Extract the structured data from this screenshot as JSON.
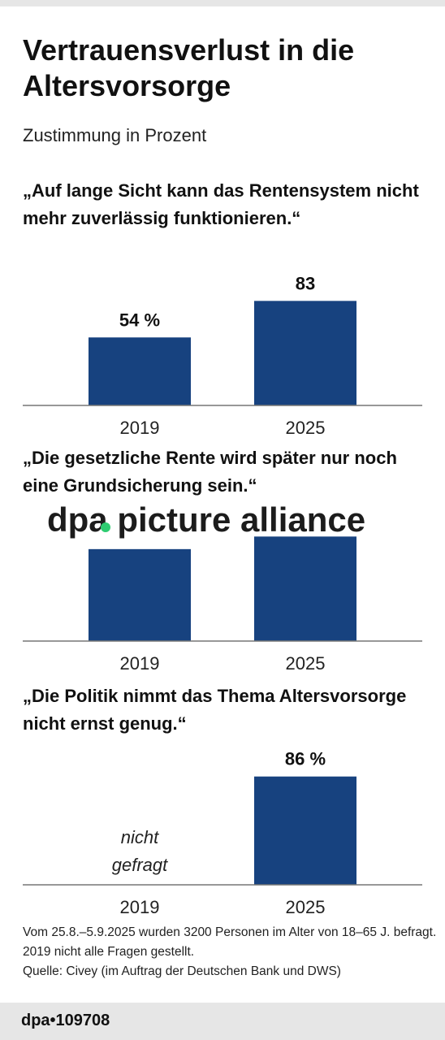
{
  "header": {
    "title": "Vertrauensverlust in die Altersvorsorge",
    "subtitle": "Zustimmung in Prozent"
  },
  "chart_data": [
    {
      "type": "bar",
      "title": "„Auf lange Sicht kann das Rentensystem nicht mehr zuverlässig funktionieren.“",
      "categories": [
        "2019",
        "2025"
      ],
      "values": [
        54,
        83
      ],
      "value_labels": [
        "54 %",
        "83"
      ],
      "ylim": [
        0,
        100
      ],
      "bar_color": "#17427f",
      "grid": false
    },
    {
      "type": "bar",
      "title": "„Die gesetzliche Rente wird später nur noch eine Grundsicherung sein.“",
      "categories": [
        "2019",
        "2025"
      ],
      "values": [
        73,
        83
      ],
      "value_labels": [
        "",
        ""
      ],
      "ylim": [
        0,
        100
      ],
      "bar_color": "#17427f",
      "grid": false
    },
    {
      "type": "bar",
      "title": "„Die Politik nimmt das Thema Altersvorsorge nicht ernst genug.“",
      "categories": [
        "2019",
        "2025"
      ],
      "values": [
        null,
        86
      ],
      "value_labels": [
        "",
        "86 %"
      ],
      "missing_labels": [
        "nicht",
        "gefragt"
      ],
      "ylim": [
        0,
        100
      ],
      "bar_color": "#17427f",
      "grid": false
    }
  ],
  "footer": {
    "note": "Vom 25.8.–5.9.2025 wurden 3200 Personen im Alter von 18–65 J. befragt. 2019 nicht alle Fragen gestellt.",
    "source": "Quelle: Civey (im Auftrag der Deutschen Bank und DWS)",
    "agency": "dpa•109708"
  },
  "watermark": {
    "text": "dpa picture alliance",
    "dot_color": "#2ecc71"
  }
}
